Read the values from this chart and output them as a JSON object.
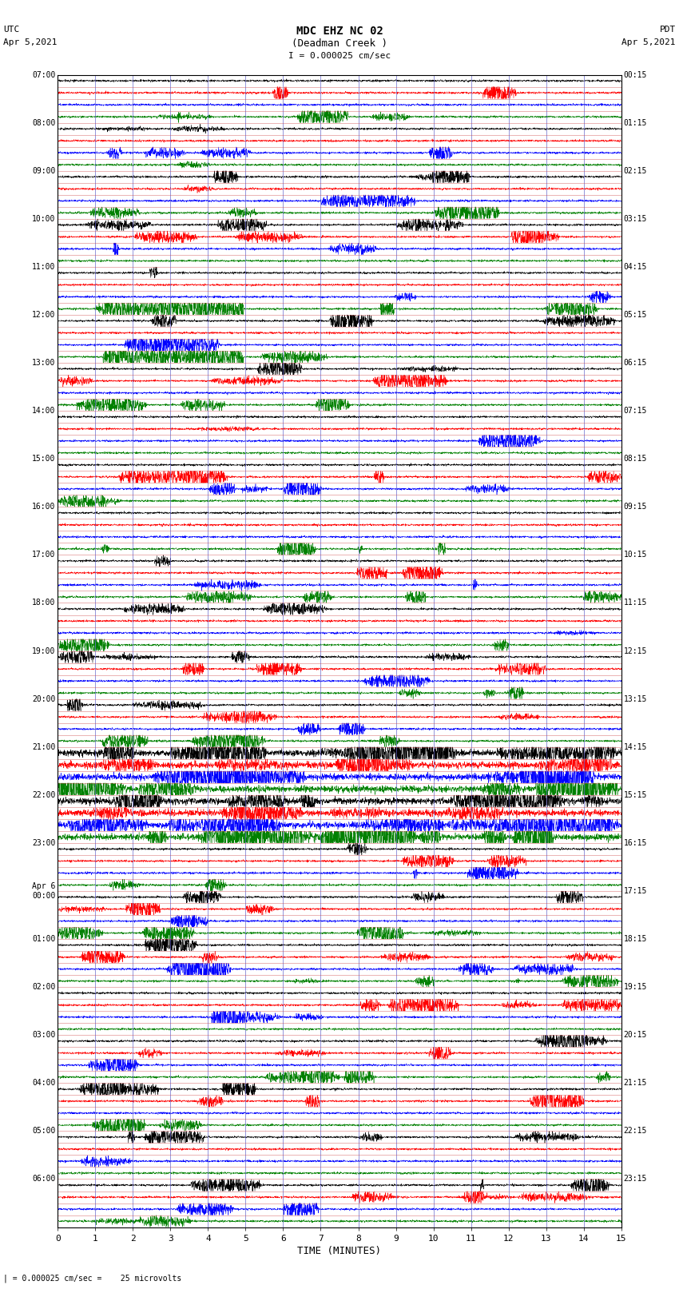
{
  "title_line1": "MDC EHZ NC 02",
  "title_line2": "(Deadman Creek )",
  "scale_text": "I = 0.000025 cm/sec",
  "left_label": "UTC",
  "left_date": "Apr 5,2021",
  "right_label": "PDT",
  "right_date": "Apr 5,2021",
  "bottom_label": "TIME (MINUTES)",
  "bottom_note": "| = 0.000025 cm/sec =    25 microvolts",
  "utc_labels": [
    "07:00",
    "08:00",
    "09:00",
    "10:00",
    "11:00",
    "12:00",
    "13:00",
    "14:00",
    "15:00",
    "16:00",
    "17:00",
    "18:00",
    "19:00",
    "20:00",
    "21:00",
    "22:00",
    "23:00",
    "Apr 6\n00:00",
    "01:00",
    "02:00",
    "03:00",
    "04:00",
    "05:00",
    "06:00"
  ],
  "pdt_labels": [
    "00:15",
    "01:15",
    "02:15",
    "03:15",
    "04:15",
    "05:15",
    "06:15",
    "07:15",
    "08:15",
    "09:15",
    "10:15",
    "11:15",
    "12:15",
    "13:15",
    "14:15",
    "15:15",
    "16:15",
    "17:15",
    "18:15",
    "19:15",
    "20:15",
    "21:15",
    "22:15",
    "23:15"
  ],
  "colors": [
    "black",
    "red",
    "blue",
    "green"
  ],
  "bg_color": "white",
  "n_rows": 96,
  "n_hours": 24,
  "rows_per_hour": 4,
  "n_minutes": 15,
  "x_ticks": [
    0,
    1,
    2,
    3,
    4,
    5,
    6,
    7,
    8,
    9,
    10,
    11,
    12,
    13,
    14,
    15
  ],
  "fig_width": 8.5,
  "fig_height": 16.13,
  "dpi": 100,
  "vline_color": "#8888ff",
  "hline_color": "#ff8888",
  "grid_vline_color": "blue",
  "grid_hline_color": "red"
}
